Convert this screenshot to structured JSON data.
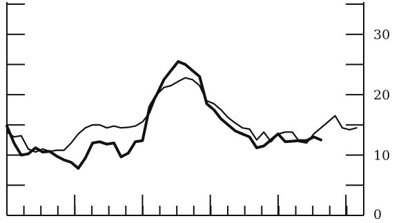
{
  "chart_data": {
    "type": "line",
    "title": "",
    "xlabel": "",
    "ylabel": "",
    "ylim": [
      0,
      35
    ],
    "y_axis_side": "right",
    "y_ticks": [
      0,
      5,
      10,
      15,
      20,
      25,
      30,
      35
    ],
    "y_tick_labels": [
      "0",
      "10",
      "20",
      "30"
    ],
    "y_tick_label_values": [
      0,
      10,
      20,
      30
    ],
    "x_range": [
      0,
      100
    ],
    "x_minor_ticks_count": 21,
    "x_major_ticks": [
      0,
      19,
      38,
      57,
      76,
      95
    ],
    "grid": false,
    "legend": "none",
    "line_color": "#111111",
    "series": [
      {
        "style": "thick",
        "x": [
          0,
          2,
          4,
          6,
          8,
          10,
          12,
          14,
          16,
          18,
          20,
          22,
          24,
          26,
          28,
          30,
          32,
          34,
          36,
          38,
          40,
          42,
          44,
          46,
          48,
          50,
          52,
          54,
          56,
          58,
          60,
          62,
          64,
          66,
          68,
          70,
          72,
          74,
          76,
          78,
          80,
          82,
          84,
          86,
          88
        ],
        "values": [
          14.8,
          12,
          10,
          10.2,
          11.2,
          10.5,
          10.6,
          9.8,
          9.2,
          8.8,
          7.8,
          9.5,
          12,
          12.2,
          11.8,
          12,
          9.7,
          10.3,
          12.2,
          12.4,
          18,
          20,
          22.5,
          24,
          25.5,
          25,
          24,
          23,
          18.5,
          17.5,
          16,
          15,
          14,
          13.5,
          13,
          11.2,
          11.5,
          12.5,
          13.5,
          12.2,
          12.3,
          12.4,
          12.4,
          13,
          12.5
        ]
      },
      {
        "style": "thin",
        "x": [
          0,
          2,
          4,
          6,
          8,
          10,
          12,
          14,
          16,
          18,
          20,
          22,
          24,
          26,
          28,
          30,
          32,
          34,
          36,
          38,
          40,
          42,
          44,
          46,
          48,
          50,
          52,
          54,
          56,
          58,
          60,
          62,
          64,
          66,
          68,
          70,
          72,
          74,
          76,
          78,
          80,
          82,
          84,
          86,
          88,
          90,
          92,
          94,
          96,
          98
        ],
        "values": [
          13.8,
          13,
          13.2,
          11,
          10.5,
          11,
          10.6,
          10.8,
          10.8,
          12,
          13.5,
          14.5,
          15,
          15,
          14.5,
          14.8,
          14.5,
          14.6,
          14.8,
          15.5,
          17,
          20,
          21.2,
          21.5,
          22.2,
          22.8,
          22.5,
          21.5,
          19,
          18.5,
          17.5,
          16.2,
          15.3,
          14.5,
          14.3,
          12.5,
          13.8,
          12.2,
          13.5,
          13.8,
          13.8,
          12.2,
          12,
          13.5,
          14.5,
          15.5,
          16.5,
          14.5,
          14.2,
          14.5
        ]
      }
    ]
  }
}
